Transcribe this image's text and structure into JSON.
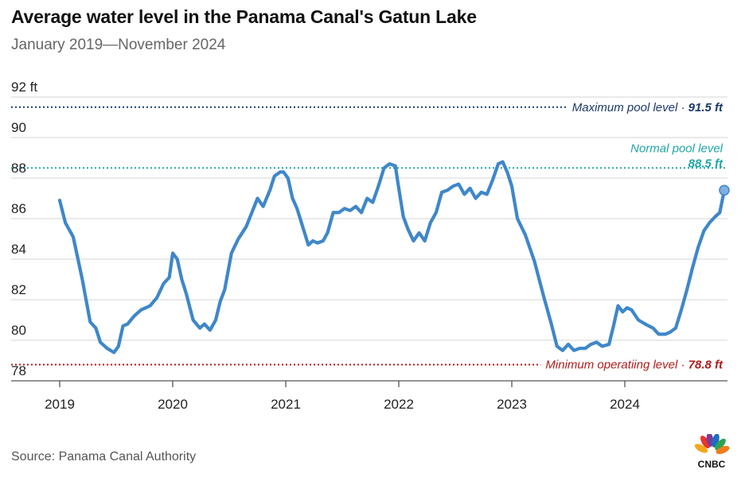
{
  "header": {
    "title": "Average water level in the Panama Canal's Gatun Lake",
    "subtitle": "January 2019—November 2024"
  },
  "footer": {
    "source": "Source: Panama Canal Authority",
    "logo_text": "CNBC"
  },
  "chart_data": {
    "type": "line",
    "title": "Average water level in the Panama Canal's Gatun Lake",
    "subtitle": "January 2019—November 2024",
    "xlabel": "",
    "ylabel": "ft",
    "xlim": [
      2018.8,
      2024.95
    ],
    "ylim": [
      78,
      92
    ],
    "y_ticks": [
      {
        "value": 92,
        "label": "92 ft"
      },
      {
        "value": 90,
        "label": "90"
      },
      {
        "value": 88,
        "label": "88"
      },
      {
        "value": 86,
        "label": "86"
      },
      {
        "value": 84,
        "label": "84"
      },
      {
        "value": 82,
        "label": "82"
      },
      {
        "value": 80,
        "label": "80"
      },
      {
        "value": 78,
        "label": "78"
      }
    ],
    "x_ticks": [
      {
        "value": 2019,
        "label": "2019"
      },
      {
        "value": 2020,
        "label": "2020"
      },
      {
        "value": 2021,
        "label": "2021"
      },
      {
        "value": 2022,
        "label": "2022"
      },
      {
        "value": 2023,
        "label": "2023"
      },
      {
        "value": 2024,
        "label": "2024"
      }
    ],
    "grid": true,
    "reference_lines": [
      {
        "name": "maximum-pool-level",
        "label": "Maximum pool level",
        "value_label": "91.5 ft",
        "value": 91.5,
        "color": "#1b3a66"
      },
      {
        "name": "normal-pool-level",
        "label": "Normal pool level",
        "value_label": "88.5 ft",
        "value": 88.5,
        "color": "#1fa6a8"
      },
      {
        "name": "minimum-operating-level",
        "label": "Minimum operatiing level",
        "value_label": "78.8 ft",
        "value": 78.8,
        "color": "#b01b1b"
      }
    ],
    "series": [
      {
        "name": "Gatun Lake average water level",
        "color": "#3f87c9",
        "x": [
          2019.0,
          2019.05,
          2019.12,
          2019.2,
          2019.27,
          2019.32,
          2019.36,
          2019.42,
          2019.48,
          2019.52,
          2019.56,
          2019.6,
          2019.66,
          2019.72,
          2019.8,
          2019.86,
          2019.92,
          2019.97,
          2020.0,
          2020.04,
          2020.08,
          2020.12,
          2020.18,
          2020.24,
          2020.28,
          2020.33,
          2020.38,
          2020.42,
          2020.46,
          2020.52,
          2020.58,
          2020.65,
          2020.7,
          2020.75,
          2020.8,
          2020.86,
          2020.9,
          2020.95,
          2020.98,
          2021.02,
          2021.06,
          2021.1,
          2021.15,
          2021.2,
          2021.24,
          2021.28,
          2021.33,
          2021.37,
          2021.42,
          2021.47,
          2021.52,
          2021.57,
          2021.62,
          2021.67,
          2021.72,
          2021.77,
          2021.82,
          2021.87,
          2021.92,
          2021.97,
          2022.0,
          2022.04,
          2022.08,
          2022.13,
          2022.18,
          2022.23,
          2022.28,
          2022.33,
          2022.38,
          2022.43,
          2022.48,
          2022.53,
          2022.58,
          2022.63,
          2022.68,
          2022.73,
          2022.78,
          2022.83,
          2022.88,
          2022.92,
          2022.96,
          2023.0,
          2023.05,
          2023.12,
          2023.2,
          2023.28,
          2023.35,
          2023.4,
          2023.45,
          2023.5,
          2023.55,
          2023.6,
          2023.65,
          2023.7,
          2023.75,
          2023.8,
          2023.86,
          2023.9,
          2023.94,
          2023.98,
          2024.02,
          2024.06,
          2024.12,
          2024.18,
          2024.25,
          2024.3,
          2024.36,
          2024.4,
          2024.45,
          2024.5,
          2024.55,
          2024.6,
          2024.65,
          2024.7,
          2024.75,
          2024.8,
          2024.84,
          2024.88
        ],
        "values": [
          86.9,
          85.8,
          85.1,
          83.0,
          80.9,
          80.6,
          79.9,
          79.6,
          79.4,
          79.7,
          80.7,
          80.8,
          81.2,
          81.5,
          81.7,
          82.1,
          82.8,
          83.1,
          84.3,
          84.0,
          83.0,
          82.3,
          81.0,
          80.6,
          80.8,
          80.5,
          81.0,
          81.9,
          82.5,
          84.3,
          85.0,
          85.6,
          86.3,
          87.0,
          86.6,
          87.4,
          88.1,
          88.3,
          88.3,
          88.0,
          87.0,
          86.5,
          85.6,
          84.7,
          84.9,
          84.8,
          84.9,
          85.3,
          86.3,
          86.3,
          86.5,
          86.4,
          86.6,
          86.3,
          87.0,
          86.8,
          87.6,
          88.5,
          88.7,
          88.6,
          87.5,
          86.1,
          85.5,
          84.9,
          85.3,
          84.9,
          85.8,
          86.3,
          87.3,
          87.4,
          87.6,
          87.7,
          87.2,
          87.5,
          87.0,
          87.3,
          87.2,
          87.9,
          88.7,
          88.8,
          88.3,
          87.6,
          86.0,
          85.2,
          83.9,
          82.2,
          80.8,
          79.7,
          79.5,
          79.8,
          79.5,
          79.6,
          79.6,
          79.8,
          79.9,
          79.7,
          79.8,
          80.7,
          81.7,
          81.4,
          81.6,
          81.5,
          81.0,
          80.8,
          80.6,
          80.3,
          80.3,
          80.4,
          80.6,
          81.5,
          82.5,
          83.6,
          84.6,
          85.4,
          85.8,
          86.1,
          86.3,
          87.4
        ],
        "last_point": {
          "x": 2024.88,
          "value": 87.4
        }
      }
    ]
  }
}
